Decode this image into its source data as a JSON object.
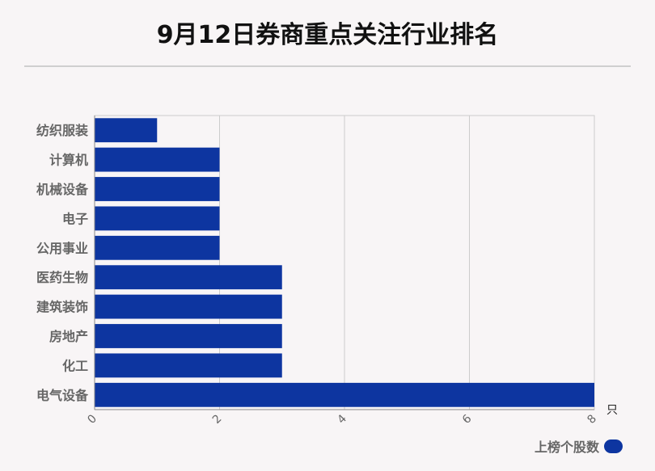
{
  "title": "9月12日券商重点关注行业排名",
  "chart_data": {
    "type": "bar",
    "orientation": "horizontal",
    "categories": [
      "纺织服装",
      "计算机",
      "机械设备",
      "电子",
      "公用事业",
      "医药生物",
      "建筑装饰",
      "房地产",
      "化工",
      "电气设备"
    ],
    "series": [
      {
        "name": "上榜个股数",
        "values": [
          1,
          2,
          2,
          2,
          2,
          3,
          3,
          3,
          3,
          8
        ]
      }
    ],
    "xlabel": "只",
    "ylabel": "",
    "xlim": [
      0,
      8
    ],
    "xticks": [
      0,
      2,
      4,
      6,
      8
    ],
    "grid": true,
    "legend_position": "bottom-right",
    "bar_color": "#0d35a0"
  }
}
